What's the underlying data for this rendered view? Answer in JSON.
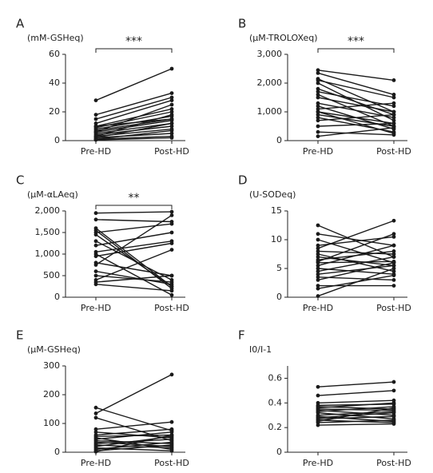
{
  "chart_data": [
    {
      "type": "line",
      "title": "A",
      "ylabel": "(mM-GSHeq)",
      "annotation": "***",
      "categories": [
        "Pre-HD",
        "Post-HD"
      ],
      "color": "#1a1a1a",
      "ylim": [
        0,
        60
      ],
      "yticks": [
        0,
        20,
        40,
        60
      ],
      "series": [
        {
          "values": [
            28,
            50
          ]
        },
        {
          "values": [
            18,
            33
          ]
        },
        {
          "values": [
            15,
            30
          ]
        },
        {
          "values": [
            12,
            28
          ]
        },
        {
          "values": [
            10,
            22
          ]
        },
        {
          "values": [
            9,
            20
          ]
        },
        {
          "values": [
            8,
            17
          ]
        },
        {
          "values": [
            7,
            15
          ]
        },
        {
          "values": [
            6,
            14
          ]
        },
        {
          "values": [
            5,
            12
          ]
        },
        {
          "values": [
            4,
            10
          ]
        },
        {
          "values": [
            3,
            8
          ]
        },
        {
          "values": [
            2,
            5
          ]
        },
        {
          "values": [
            1,
            3
          ]
        },
        {
          "values": [
            0.5,
            2
          ]
        },
        {
          "values": [
            10,
            15
          ]
        },
        {
          "values": [
            6,
            25
          ]
        },
        {
          "values": [
            3,
            18
          ]
        },
        {
          "values": [
            2,
            12
          ]
        },
        {
          "values": [
            1,
            7
          ]
        }
      ]
    },
    {
      "type": "line",
      "title": "B",
      "ylabel": "(μM-TROLOXeq)",
      "annotation": "***",
      "categories": [
        "Pre-HD",
        "Post-HD"
      ],
      "color": "#1a1a1a",
      "ylim": [
        0,
        3000
      ],
      "yticks": [
        0,
        {
          "value": 1000,
          "label": "1,000"
        },
        {
          "value": 2000,
          "label": "2,000"
        },
        {
          "value": 3000,
          "label": "3,000"
        }
      ],
      "series": [
        {
          "values": [
            2450,
            2100
          ]
        },
        {
          "values": [
            2350,
            1600
          ]
        },
        {
          "values": [
            2150,
            1000
          ]
        },
        {
          "values": [
            2100,
            1500
          ]
        },
        {
          "values": [
            2000,
            700
          ]
        },
        {
          "values": [
            1800,
            900
          ]
        },
        {
          "values": [
            1600,
            500
          ]
        },
        {
          "values": [
            1500,
            1000
          ]
        },
        {
          "values": [
            1300,
            800
          ]
        },
        {
          "values": [
            1200,
            400
          ]
        },
        {
          "values": [
            1100,
            1300
          ]
        },
        {
          "values": [
            1000,
            600
          ]
        },
        {
          "values": [
            900,
            500
          ]
        },
        {
          "values": [
            800,
            300
          ]
        },
        {
          "values": [
            700,
            900
          ]
        },
        {
          "values": [
            500,
            600
          ]
        },
        {
          "values": [
            300,
            200
          ]
        },
        {
          "values": [
            150,
            450
          ]
        },
        {
          "values": [
            1000,
            250
          ]
        },
        {
          "values": [
            1700,
            1200
          ]
        }
      ]
    },
    {
      "type": "line",
      "title": "C",
      "ylabel": "(μM-αLAeq)",
      "annotation": "**",
      "categories": [
        "Pre-HD",
        "Post-HD"
      ],
      "color": "#1a1a1a",
      "ylim": [
        0,
        2000
      ],
      "yticks": [
        0,
        500,
        {
          "value": 1000,
          "label": "1,000"
        },
        {
          "value": 1500,
          "label": "1,500"
        },
        {
          "value": 2000,
          "label": "2,000"
        }
      ],
      "series": [
        {
          "values": [
            1950,
            1980
          ]
        },
        {
          "values": [
            1800,
            1750
          ]
        },
        {
          "values": [
            1600,
            250
          ]
        },
        {
          "values": [
            1550,
            200
          ]
        },
        {
          "values": [
            1500,
            1700
          ]
        },
        {
          "values": [
            1300,
            400
          ]
        },
        {
          "values": [
            1200,
            1500
          ]
        },
        {
          "values": [
            1050,
            1300
          ]
        },
        {
          "values": [
            800,
            500
          ]
        },
        {
          "values": [
            750,
            1900
          ]
        },
        {
          "values": [
            600,
            300
          ]
        },
        {
          "values": [
            500,
            350
          ]
        },
        {
          "values": [
            400,
            1100
          ]
        },
        {
          "values": [
            350,
            500
          ]
        },
        {
          "values": [
            300,
            150
          ]
        },
        {
          "values": [
            1000,
            50
          ]
        },
        {
          "values": [
            950,
            1250
          ]
        },
        {
          "values": [
            1450,
            250
          ]
        }
      ]
    },
    {
      "type": "line",
      "title": "D",
      "ylabel": "(U-SODeq)",
      "categories": [
        "Pre-HD",
        "Post-HD"
      ],
      "color": "#1a1a1a",
      "ylim": [
        0,
        15
      ],
      "yticks": [
        0,
        5,
        10,
        15
      ],
      "series": [
        {
          "values": [
            12.5,
            7
          ]
        },
        {
          "values": [
            11,
            9
          ]
        },
        {
          "values": [
            10,
            6
          ]
        },
        {
          "values": [
            9,
            10.5
          ]
        },
        {
          "values": [
            8.5,
            13.3
          ]
        },
        {
          "values": [
            8,
            7.5
          ]
        },
        {
          "values": [
            7,
            5.5
          ]
        },
        {
          "values": [
            6.5,
            8
          ]
        },
        {
          "values": [
            6,
            6.2
          ]
        },
        {
          "values": [
            5.5,
            9
          ]
        },
        {
          "values": [
            5,
            4
          ]
        },
        {
          "values": [
            4.5,
            7
          ]
        },
        {
          "values": [
            4,
            5.5
          ]
        },
        {
          "values": [
            3.5,
            3
          ]
        },
        {
          "values": [
            3,
            6
          ]
        },
        {
          "values": [
            2,
            2
          ]
        },
        {
          "values": [
            1.5,
            3.8
          ]
        },
        {
          "values": [
            0.2,
            5
          ]
        },
        {
          "values": [
            6.2,
            11
          ]
        },
        {
          "values": [
            7.5,
            4.5
          ]
        }
      ]
    },
    {
      "type": "line",
      "title": "E",
      "ylabel": "(μM-GSHeq)",
      "categories": [
        "Pre-HD",
        "Post-HD"
      ],
      "color": "#1a1a1a",
      "ylim": [
        0,
        300
      ],
      "yticks": [
        0,
        100,
        200,
        300
      ],
      "series": [
        {
          "values": [
            155,
            75
          ]
        },
        {
          "values": [
            135,
            270
          ]
        },
        {
          "values": [
            120,
            40
          ]
        },
        {
          "values": [
            80,
            105
          ]
        },
        {
          "values": [
            70,
            50
          ]
        },
        {
          "values": [
            60,
            80
          ]
        },
        {
          "values": [
            55,
            60
          ]
        },
        {
          "values": [
            50,
            10
          ]
        },
        {
          "values": [
            45,
            70
          ]
        },
        {
          "values": [
            40,
            30
          ]
        },
        {
          "values": [
            35,
            20
          ]
        },
        {
          "values": [
            30,
            45
          ]
        },
        {
          "values": [
            25,
            15
          ]
        },
        {
          "values": [
            20,
            55
          ]
        },
        {
          "values": [
            15,
            5
          ]
        },
        {
          "values": [
            10,
            35
          ]
        },
        {
          "values": [
            5,
            25
          ]
        },
        {
          "values": [
            2,
            60
          ]
        }
      ]
    },
    {
      "type": "line",
      "title": "F",
      "ylabel": "I0/I-1",
      "categories": [
        "Pre-HD",
        "Post-HD"
      ],
      "color": "#1a1a1a",
      "ylim": [
        0,
        0.7
      ],
      "yticks": [
        0,
        0.2,
        0.4,
        0.6
      ],
      "series": [
        {
          "values": [
            0.53,
            0.57
          ]
        },
        {
          "values": [
            0.46,
            0.5
          ]
        },
        {
          "values": [
            0.4,
            0.42
          ]
        },
        {
          "values": [
            0.38,
            0.39
          ]
        },
        {
          "values": [
            0.37,
            0.35
          ]
        },
        {
          "values": [
            0.36,
            0.4
          ]
        },
        {
          "values": [
            0.34,
            0.3
          ]
        },
        {
          "values": [
            0.33,
            0.37
          ]
        },
        {
          "values": [
            0.32,
            0.27
          ]
        },
        {
          "values": [
            0.3,
            0.33
          ]
        },
        {
          "values": [
            0.29,
            0.25
          ]
        },
        {
          "values": [
            0.28,
            0.32
          ]
        },
        {
          "values": [
            0.27,
            0.29
          ]
        },
        {
          "values": [
            0.26,
            0.24
          ]
        },
        {
          "values": [
            0.25,
            0.36
          ]
        },
        {
          "values": [
            0.24,
            0.26
          ]
        },
        {
          "values": [
            0.22,
            0.23
          ]
        },
        {
          "values": [
            0.35,
            0.34
          ]
        }
      ]
    }
  ]
}
